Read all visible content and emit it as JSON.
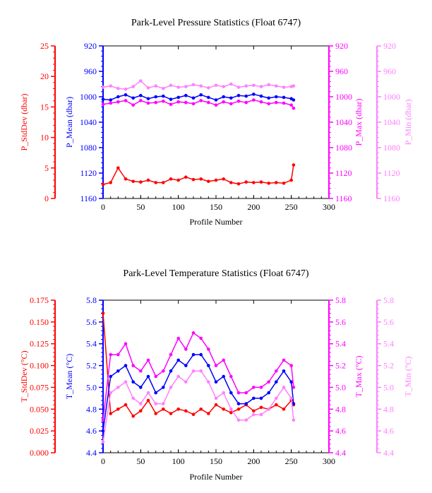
{
  "chart_data": [
    {
      "type": "line",
      "title": "Park-Level Pressure Statistics (Float 6747)",
      "xlabel": "Profile Number",
      "xlim": [
        0,
        300
      ],
      "xticks": [
        "0",
        "50",
        "100",
        "150",
        "200",
        "250",
        "300"
      ],
      "colors": {
        "stddev": "#ff0000",
        "mean": "#0000ff",
        "max": "#ff00ff",
        "min": "#ff80ff"
      },
      "axes": {
        "stddev": {
          "label": "P_StdDev (dbar)",
          "lim": [
            0,
            25
          ],
          "ticks": [
            "0",
            "5",
            "10",
            "15",
            "20",
            "25"
          ]
        },
        "mean": {
          "label": "P_Mean (dbar)",
          "lim": [
            920,
            1160
          ],
          "inverted": true,
          "ticks": [
            "920",
            "960",
            "1000",
            "1040",
            "1080",
            "1120",
            "1160"
          ]
        },
        "max": {
          "label": "P_Max (dbar)",
          "lim": [
            920,
            1160
          ],
          "inverted": true,
          "ticks": [
            "920",
            "960",
            "1000",
            "1040",
            "1080",
            "1120",
            "1160"
          ]
        },
        "min": {
          "label": "P_Min (dbar)",
          "lim": [
            920,
            1160
          ],
          "inverted": true,
          "ticks": [
            "920",
            "960",
            "1000",
            "1040",
            "1080",
            "1120",
            "1160"
          ]
        }
      },
      "series": [
        {
          "name": "StdDev",
          "axis": "stddev",
          "x": [
            0,
            10,
            20,
            30,
            40,
            50,
            60,
            70,
            80,
            90,
            100,
            110,
            120,
            130,
            140,
            150,
            160,
            170,
            180,
            190,
            200,
            210,
            220,
            230,
            240,
            250,
            253
          ],
          "values": [
            2.3,
            2.6,
            5,
            3.2,
            2.8,
            2.7,
            3.0,
            2.6,
            2.6,
            3.2,
            3.0,
            3.5,
            3.1,
            3.2,
            2.8,
            3.0,
            3.2,
            2.6,
            2.4,
            2.7,
            2.6,
            2.7,
            2.5,
            2.6,
            2.5,
            3.0,
            5.5
          ]
        },
        {
          "name": "Mean",
          "axis": "mean",
          "x": [
            0,
            10,
            20,
            30,
            40,
            50,
            60,
            70,
            80,
            90,
            100,
            110,
            120,
            130,
            140,
            150,
            160,
            170,
            180,
            190,
            200,
            210,
            220,
            230,
            240,
            250,
            253
          ],
          "values": [
            1004,
            1005,
            1000,
            997,
            1002,
            998,
            1003,
            1000,
            999,
            1004,
            1001,
            998,
            1002,
            997,
            1001,
            1005,
            1000,
            1002,
            998,
            999,
            996,
            999,
            1002,
            1000,
            1001,
            1003,
            1005
          ]
        },
        {
          "name": "Max",
          "axis": "max",
          "x": [
            0,
            10,
            20,
            30,
            40,
            50,
            60,
            70,
            80,
            90,
            100,
            110,
            120,
            130,
            140,
            150,
            160,
            170,
            180,
            190,
            200,
            210,
            220,
            230,
            240,
            250,
            253
          ],
          "values": [
            1012,
            1010,
            1008,
            1006,
            1013,
            1006,
            1010,
            1009,
            1007,
            1012,
            1008,
            1009,
            1011,
            1006,
            1009,
            1013,
            1008,
            1011,
            1007,
            1009,
            1005,
            1008,
            1011,
            1009,
            1010,
            1013,
            1018
          ]
        },
        {
          "name": "Min",
          "axis": "min",
          "x": [
            0,
            10,
            20,
            30,
            40,
            50,
            60,
            70,
            80,
            90,
            100,
            110,
            120,
            130,
            140,
            150,
            160,
            170,
            180,
            190,
            200,
            210,
            220,
            230,
            240,
            250,
            253
          ],
          "values": [
            985,
            983,
            987,
            988,
            984,
            975,
            986,
            983,
            987,
            982,
            985,
            984,
            981,
            983,
            986,
            982,
            984,
            980,
            985,
            983,
            982,
            984,
            981,
            983,
            985,
            984,
            983
          ]
        }
      ]
    },
    {
      "type": "line",
      "title": "Park-Level Temperature Statistics (Float 6747)",
      "xlabel": "Profile Number",
      "xlim": [
        0,
        300
      ],
      "xticks": [
        "0",
        "50",
        "100",
        "150",
        "200",
        "250",
        "300"
      ],
      "colors": {
        "stddev": "#ff0000",
        "mean": "#0000ff",
        "max": "#ff00ff",
        "min": "#ff80ff"
      },
      "axes": {
        "stddev": {
          "label": "T_StdDev (°C)",
          "lim": [
            0,
            0.175
          ],
          "ticks": [
            "0.000",
            "0.025",
            "0.050",
            "0.075",
            "0.100",
            "0.125",
            "0.150",
            "0.175"
          ]
        },
        "mean": {
          "label": "T_Mean (°C)",
          "lim": [
            4.4,
            5.8
          ],
          "ticks": [
            "4.4",
            "4.6",
            "4.8",
            "5.0",
            "5.2",
            "5.4",
            "5.6",
            "5.8"
          ]
        },
        "max": {
          "label": "T_Max (°C)",
          "lim": [
            4.4,
            5.8
          ],
          "ticks": [
            "4.4",
            "4.6",
            "4.8",
            "5.0",
            "5.2",
            "5.4",
            "5.6",
            "5.8"
          ]
        },
        "min": {
          "label": "T_Min (°C)",
          "lim": [
            4.4,
            5.8
          ],
          "ticks": [
            "4.4",
            "4.6",
            "4.8",
            "5.0",
            "5.2",
            "5.4",
            "5.6",
            "5.8"
          ]
        }
      },
      "series": [
        {
          "name": "StdDev",
          "axis": "stddev",
          "x": [
            0,
            10,
            20,
            30,
            40,
            50,
            60,
            70,
            80,
            90,
            100,
            110,
            120,
            130,
            140,
            150,
            160,
            170,
            180,
            190,
            200,
            210,
            220,
            230,
            240,
            250,
            253
          ],
          "values": [
            0.16,
            0.045,
            0.05,
            0.055,
            0.042,
            0.048,
            0.06,
            0.045,
            0.05,
            0.045,
            0.05,
            0.048,
            0.044,
            0.05,
            0.045,
            0.055,
            0.05,
            0.046,
            0.05,
            0.055,
            0.048,
            0.052,
            0.05,
            0.055,
            0.05,
            0.06,
            0.055
          ]
        },
        {
          "name": "Mean",
          "axis": "mean",
          "x": [
            0,
            10,
            20,
            30,
            40,
            50,
            60,
            70,
            80,
            90,
            100,
            110,
            120,
            130,
            140,
            150,
            160,
            170,
            180,
            190,
            200,
            210,
            220,
            230,
            240,
            250,
            253
          ],
          "values": [
            4.6,
            5.1,
            5.15,
            5.2,
            5.05,
            5.0,
            5.1,
            4.95,
            5.0,
            5.15,
            5.25,
            5.2,
            5.3,
            5.3,
            5.2,
            5.05,
            5.1,
            4.95,
            4.85,
            4.85,
            4.9,
            4.9,
            4.95,
            5.05,
            5.15,
            5.05,
            4.85
          ]
        },
        {
          "name": "Max",
          "axis": "max",
          "x": [
            0,
            10,
            20,
            30,
            40,
            50,
            60,
            70,
            80,
            90,
            100,
            110,
            120,
            130,
            140,
            150,
            160,
            170,
            180,
            190,
            200,
            210,
            220,
            230,
            240,
            250,
            253
          ],
          "values": [
            4.7,
            5.3,
            5.3,
            5.4,
            5.2,
            5.15,
            5.25,
            5.1,
            5.15,
            5.3,
            5.45,
            5.35,
            5.5,
            5.45,
            5.35,
            5.2,
            5.25,
            5.1,
            4.95,
            4.95,
            5.0,
            5.0,
            5.05,
            5.15,
            5.25,
            5.2,
            5.0
          ]
        },
        {
          "name": "Min",
          "axis": "min",
          "x": [
            0,
            10,
            20,
            30,
            40,
            50,
            60,
            70,
            80,
            90,
            100,
            110,
            120,
            130,
            140,
            150,
            160,
            170,
            180,
            190,
            200,
            210,
            220,
            230,
            240,
            250,
            253
          ],
          "values": [
            4.5,
            4.95,
            5.0,
            5.05,
            4.9,
            4.85,
            4.95,
            4.85,
            4.85,
            5.0,
            5.1,
            5.05,
            5.15,
            5.15,
            5.05,
            4.9,
            4.95,
            4.8,
            4.7,
            4.7,
            4.75,
            4.75,
            4.8,
            4.9,
            5.0,
            4.9,
            4.7
          ]
        }
      ]
    }
  ]
}
